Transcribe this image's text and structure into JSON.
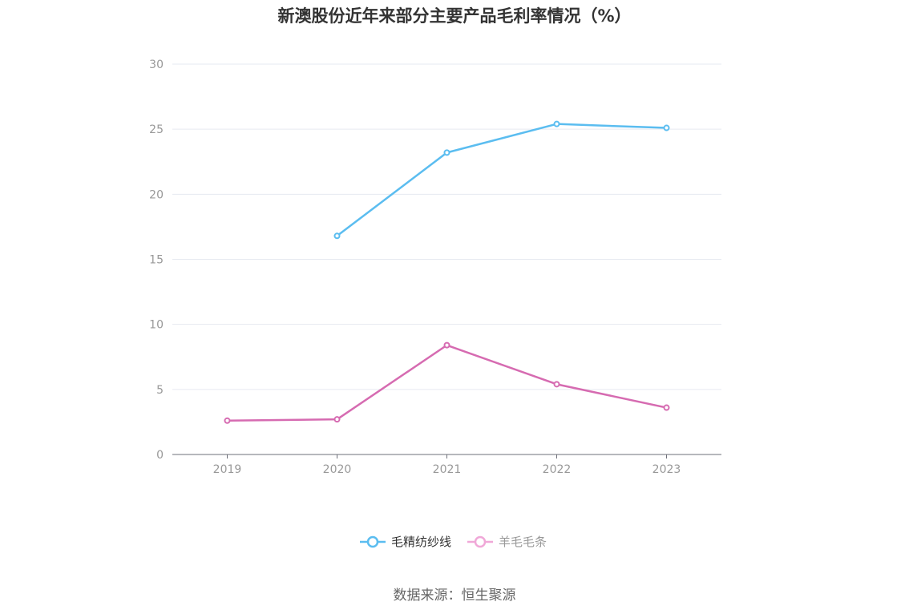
{
  "chart_data": {
    "type": "line",
    "title": "新澳股份近年来部分主要产品毛利率情况（%）",
    "categories": [
      "2019",
      "2020",
      "2021",
      "2022",
      "2023"
    ],
    "series": [
      {
        "name": "毛精纺纱线",
        "color": "#5bbdf0",
        "values": [
          null,
          16.8,
          23.2,
          25.4,
          25.1
        ]
      },
      {
        "name": "羊毛毛条",
        "color": "#d66bb1",
        "values": [
          2.6,
          2.7,
          8.4,
          5.4,
          3.6
        ]
      }
    ],
    "ylim": [
      0,
      30
    ],
    "yticks": [
      0,
      5,
      10,
      15,
      20,
      25,
      30
    ],
    "grid": true,
    "legend_position": "bottom"
  },
  "source": "数据来源：恒生聚源"
}
